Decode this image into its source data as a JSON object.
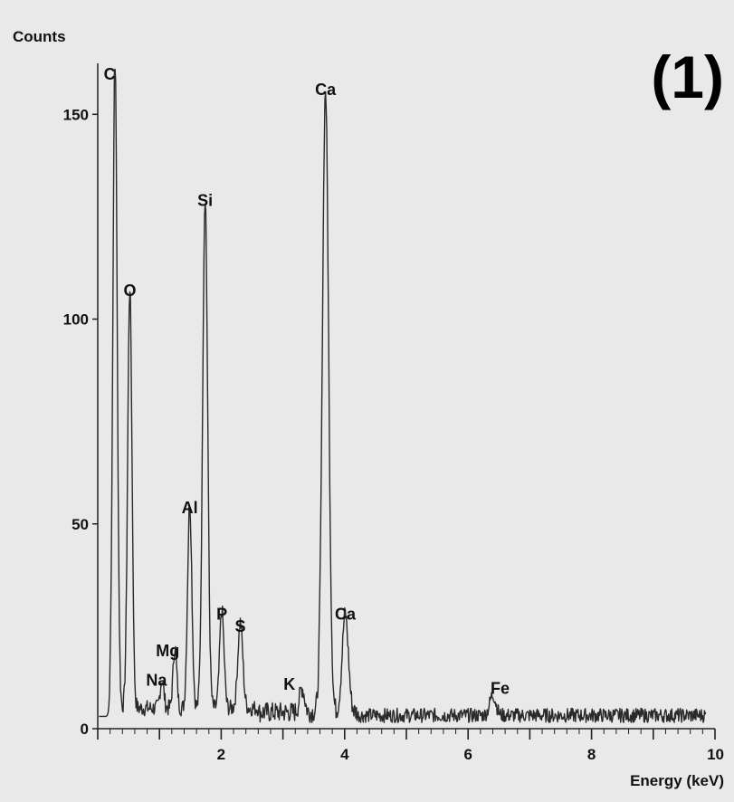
{
  "panel_label": "(1)",
  "colors": {
    "background": "#e9e9e9",
    "trace": "#2a2a2a",
    "axis": "#222222",
    "text": "#111111"
  },
  "chart_data": {
    "type": "line",
    "title": "",
    "xlabel": "Energy (keV)",
    "ylabel": "Counts",
    "xlim": [
      0,
      10
    ],
    "ylim": [
      0,
      162
    ],
    "x_ticks": [
      2,
      4,
      6,
      8,
      10
    ],
    "y_ticks": [
      0,
      50,
      100,
      150
    ],
    "grid": false,
    "peaks": [
      {
        "label": "C",
        "energy": 0.28,
        "counts": 160
      },
      {
        "label": "O",
        "energy": 0.52,
        "counts": 103
      },
      {
        "label": "Na",
        "energy": 1.04,
        "counts": 7
      },
      {
        "label": "Mg",
        "energy": 1.25,
        "counts": 15
      },
      {
        "label": "Al",
        "energy": 1.49,
        "counts": 50
      },
      {
        "label": "Si",
        "energy": 1.74,
        "counts": 125
      },
      {
        "label": "P",
        "energy": 2.01,
        "counts": 24
      },
      {
        "label": "S",
        "energy": 2.31,
        "counts": 21
      },
      {
        "label": "K",
        "energy": 3.31,
        "counts": 6
      },
      {
        "label": "Ca",
        "energy": 3.69,
        "counts": 152
      },
      {
        "label": "Ca",
        "energy": 4.01,
        "counts": 24
      },
      {
        "label": "Fe",
        "energy": 6.4,
        "counts": 5
      }
    ]
  }
}
